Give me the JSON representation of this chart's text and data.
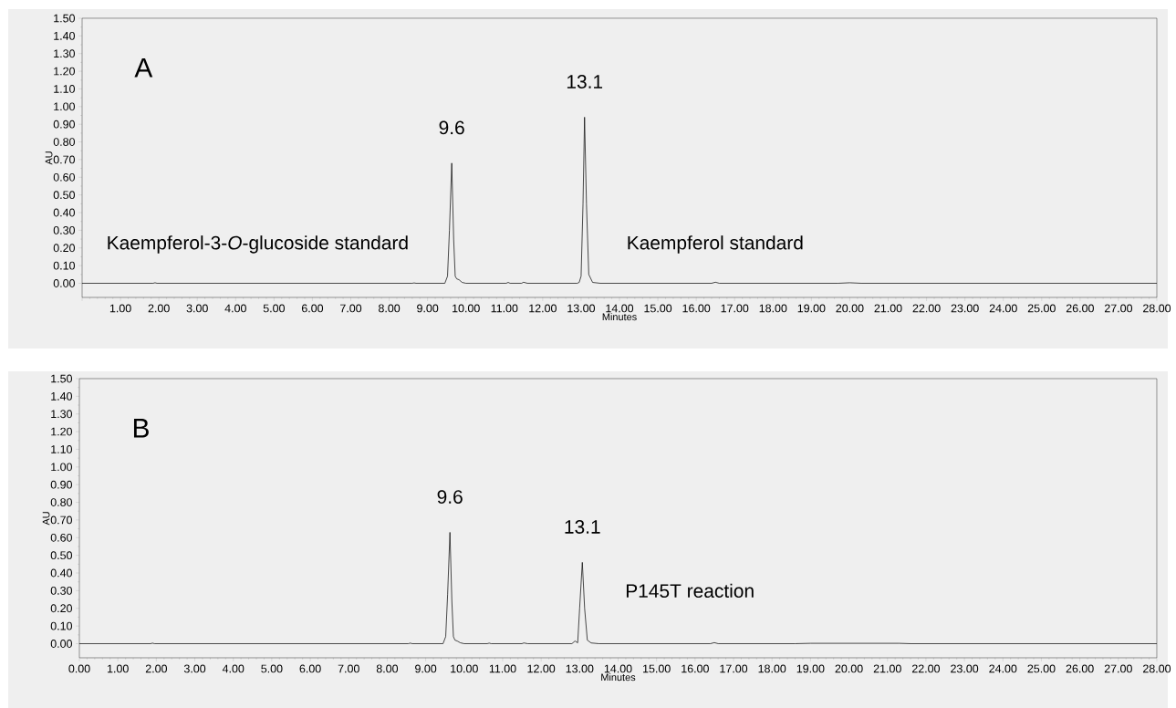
{
  "chart_data": [
    {
      "type": "line",
      "xlabel": "Minutes",
      "ylabel": "AU",
      "x": [
        0,
        1.85,
        1.9,
        1.95,
        8.6,
        8.65,
        8.7,
        9.45,
        9.52,
        9.57,
        9.63,
        9.68,
        9.72,
        9.76,
        9.82,
        9.9,
        10.0,
        11.05,
        11.1,
        11.15,
        11.45,
        11.5,
        11.6,
        12.9,
        12.95,
        13.0,
        13.05,
        13.09,
        13.14,
        13.2,
        13.3,
        13.5,
        16.4,
        16.5,
        16.6,
        19.7,
        20.0,
        20.3,
        28
      ],
      "series": [
        {
          "color": "#000000",
          "values": [
            0,
            0,
            0.003,
            0,
            0,
            0.002,
            0,
            0,
            0.04,
            0.3,
            0.68,
            0.25,
            0.04,
            0.025,
            0.02,
            0.005,
            0,
            0,
            0.005,
            0,
            0,
            0.006,
            0,
            0,
            0.005,
            0.04,
            0.45,
            0.94,
            0.45,
            0.05,
            0.005,
            0,
            0,
            0.006,
            0,
            0,
            0.003,
            0,
            0
          ]
        }
      ],
      "xlim": [
        0,
        28
      ],
      "ylim": [
        -0.08,
        1.5
      ],
      "xticks": [
        {
          "value": 0,
          "label": null
        },
        {
          "value": 1,
          "label": "1.00"
        },
        {
          "value": 2,
          "label": "2.00"
        },
        {
          "value": 3,
          "label": "3.00"
        },
        {
          "value": 4,
          "label": "4.00"
        },
        {
          "value": 5,
          "label": "5.00"
        },
        {
          "value": 6,
          "label": "6.00"
        },
        {
          "value": 7,
          "label": "7.00"
        },
        {
          "value": 8,
          "label": "8.00"
        },
        {
          "value": 9,
          "label": "9.00"
        },
        {
          "value": 10,
          "label": "10.00"
        },
        {
          "value": 11,
          "label": "11.00"
        },
        {
          "value": 12,
          "label": "12.00"
        },
        {
          "value": 13,
          "label": "13.00"
        },
        {
          "value": 14,
          "label": "14.00"
        },
        {
          "value": 15,
          "label": "15.00"
        },
        {
          "value": 16,
          "label": "16.00"
        },
        {
          "value": 17,
          "label": "17.00"
        },
        {
          "value": 18,
          "label": "18.00"
        },
        {
          "value": 19,
          "label": "19.00"
        },
        {
          "value": 20,
          "label": "20.00"
        },
        {
          "value": 21,
          "label": "21.00"
        },
        {
          "value": 22,
          "label": "22.00"
        },
        {
          "value": 23,
          "label": "23.00"
        },
        {
          "value": 24,
          "label": "24.00"
        },
        {
          "value": 25,
          "label": "25.00"
        },
        {
          "value": 26,
          "label": "26.00"
        },
        {
          "value": 27,
          "label": "27.00"
        },
        {
          "value": 28,
          "label": "28.00"
        }
      ],
      "yticks": [
        {
          "value": 0,
          "label": "0.00"
        },
        {
          "value": 0.1,
          "label": "0.10"
        },
        {
          "value": 0.2,
          "label": "0.20"
        },
        {
          "value": 0.3,
          "label": "0.30"
        },
        {
          "value": 0.4,
          "label": "0.40"
        },
        {
          "value": 0.5,
          "label": "0.50"
        },
        {
          "value": 0.6,
          "label": "0.60"
        },
        {
          "value": 0.7,
          "label": "0.70"
        },
        {
          "value": 0.8,
          "label": "0.80"
        },
        {
          "value": 0.9,
          "label": "0.90"
        },
        {
          "value": 1.0,
          "label": "1.00"
        },
        {
          "value": 1.1,
          "label": "1.10"
        },
        {
          "value": 1.2,
          "label": "1.20"
        },
        {
          "value": 1.3,
          "label": "1.30"
        },
        {
          "value": 1.4,
          "label": "1.40"
        },
        {
          "value": 1.5,
          "label": "1.50"
        }
      ],
      "annotations": [
        "A",
        {
          "text": "9.6",
          "x": 9.63,
          "y": 0.68
        },
        {
          "text": "13.1",
          "x": 13.09,
          "y": 0.94
        },
        "Kaempferol-3-*O*-glucoside standard",
        "Kaempferol standard"
      ]
    },
    {
      "type": "line",
      "xlabel": "Minutes",
      "ylabel": "AU",
      "x": [
        0,
        1.85,
        1.9,
        1.95,
        8.55,
        8.6,
        8.65,
        9.45,
        9.52,
        9.57,
        9.63,
        9.68,
        9.72,
        9.76,
        9.82,
        9.9,
        10.0,
        10.6,
        10.65,
        10.7,
        11.5,
        11.55,
        11.65,
        12.8,
        12.88,
        12.95,
        13.0,
        13.07,
        13.13,
        13.2,
        13.3,
        13.5,
        16.4,
        16.5,
        16.6,
        18.6,
        19.0,
        21.3,
        21.6,
        28
      ],
      "series": [
        {
          "color": "#000000",
          "values": [
            0,
            0,
            0.003,
            0,
            0,
            0.003,
            0,
            0,
            0.04,
            0.28,
            0.63,
            0.24,
            0.04,
            0.02,
            0.015,
            0.005,
            0,
            0,
            0.003,
            0,
            0,
            0.004,
            0,
            0,
            0.015,
            0.005,
            0.2,
            0.46,
            0.2,
            0.02,
            0.004,
            0,
            0,
            0.006,
            0,
            0,
            0.002,
            0.002,
            0,
            0
          ]
        }
      ],
      "xlim": [
        0,
        28
      ],
      "ylim": [
        -0.08,
        1.5
      ],
      "xticks": [
        {
          "value": 0,
          "label": "0.00"
        },
        {
          "value": 1,
          "label": "1.00"
        },
        {
          "value": 2,
          "label": "2.00"
        },
        {
          "value": 3,
          "label": "3.00"
        },
        {
          "value": 4,
          "label": "4.00"
        },
        {
          "value": 5,
          "label": "5.00"
        },
        {
          "value": 6,
          "label": "6.00"
        },
        {
          "value": 7,
          "label": "7.00"
        },
        {
          "value": 8,
          "label": "8.00"
        },
        {
          "value": 9,
          "label": "9.00"
        },
        {
          "value": 10,
          "label": "10.00"
        },
        {
          "value": 11,
          "label": "11.00"
        },
        {
          "value": 12,
          "label": "12.00"
        },
        {
          "value": 13,
          "label": "13.00"
        },
        {
          "value": 14,
          "label": "14.00"
        },
        {
          "value": 15,
          "label": "15.00"
        },
        {
          "value": 16,
          "label": "16.00"
        },
        {
          "value": 17,
          "label": "17.00"
        },
        {
          "value": 18,
          "label": "18.00"
        },
        {
          "value": 19,
          "label": "19.00"
        },
        {
          "value": 20,
          "label": "20.00"
        },
        {
          "value": 21,
          "label": "21.00"
        },
        {
          "value": 22,
          "label": "22.00"
        },
        {
          "value": 23,
          "label": "23.00"
        },
        {
          "value": 24,
          "label": "24.00"
        },
        {
          "value": 25,
          "label": "25.00"
        },
        {
          "value": 26,
          "label": "26.00"
        },
        {
          "value": 27,
          "label": "27.00"
        },
        {
          "value": 28,
          "label": "28.00"
        }
      ],
      "yticks": [
        {
          "value": 0,
          "label": "0.00"
        },
        {
          "value": 0.1,
          "label": "0.10"
        },
        {
          "value": 0.2,
          "label": "0.20"
        },
        {
          "value": 0.3,
          "label": "0.30"
        },
        {
          "value": 0.4,
          "label": "0.40"
        },
        {
          "value": 0.5,
          "label": "0.50"
        },
        {
          "value": 0.6,
          "label": "0.60"
        },
        {
          "value": 0.7,
          "label": "0.70"
        },
        {
          "value": 0.8,
          "label": "0.80"
        },
        {
          "value": 0.9,
          "label": "0.90"
        },
        {
          "value": 1.0,
          "label": "1.00"
        },
        {
          "value": 1.1,
          "label": "1.10"
        },
        {
          "value": 1.2,
          "label": "1.20"
        },
        {
          "value": 1.3,
          "label": "1.30"
        },
        {
          "value": 1.4,
          "label": "1.40"
        },
        {
          "value": 1.5,
          "label": "1.50"
        }
      ],
      "annotations": [
        "B",
        {
          "text": "9.6",
          "x": 9.63,
          "y": 0.63
        },
        {
          "text": "13.1",
          "x": 13.07,
          "y": 0.46
        },
        "P145T reaction"
      ]
    }
  ]
}
